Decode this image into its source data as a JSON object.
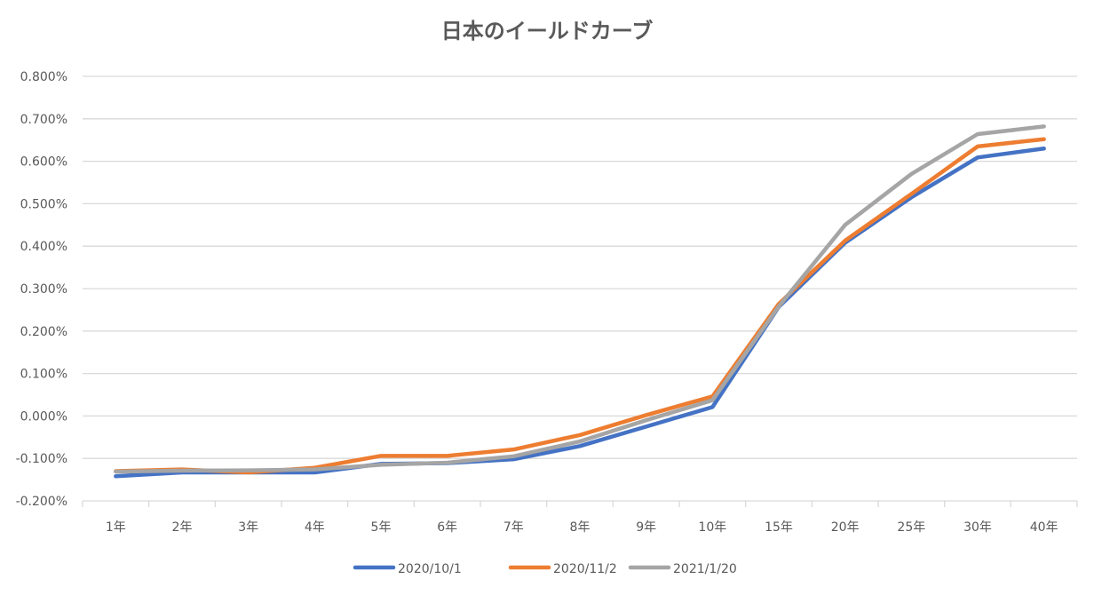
{
  "chart_data": {
    "type": "line",
    "title": "日本のイールドカーブ",
    "categories": [
      "1年",
      "2年",
      "3年",
      "4年",
      "5年",
      "6年",
      "7年",
      "8年",
      "9年",
      "10年",
      "15年",
      "20年",
      "25年",
      "30年",
      "40年"
    ],
    "ylim": [
      -0.2,
      0.8
    ],
    "yticks": [
      -0.2,
      -0.1,
      0.0,
      0.1,
      0.2,
      0.3,
      0.4,
      0.5,
      0.6,
      0.7,
      0.8
    ],
    "yformat": "percent_3dp",
    "grid": true,
    "legend": "bottom",
    "series": [
      {
        "name": "2020/10/1",
        "color": "#4472C4",
        "values": [
          -0.142,
          -0.133,
          -0.133,
          -0.133,
          -0.113,
          -0.111,
          -0.102,
          -0.071,
          -0.025,
          0.021,
          0.257,
          0.408,
          0.515,
          0.609,
          0.63
        ]
      },
      {
        "name": "2020/11/2",
        "color": "#ED7D31",
        "values": [
          -0.13,
          -0.126,
          -0.133,
          -0.122,
          -0.094,
          -0.094,
          -0.079,
          -0.045,
          0.002,
          0.046,
          0.264,
          0.413,
          0.523,
          0.635,
          0.652
        ]
      },
      {
        "name": "2021/1/20",
        "color": "#A5A5A5",
        "values": [
          -0.131,
          -0.129,
          -0.128,
          -0.126,
          -0.115,
          -0.11,
          -0.095,
          -0.06,
          -0.01,
          0.037,
          0.258,
          0.45,
          0.57,
          0.664,
          0.682
        ]
      }
    ]
  }
}
